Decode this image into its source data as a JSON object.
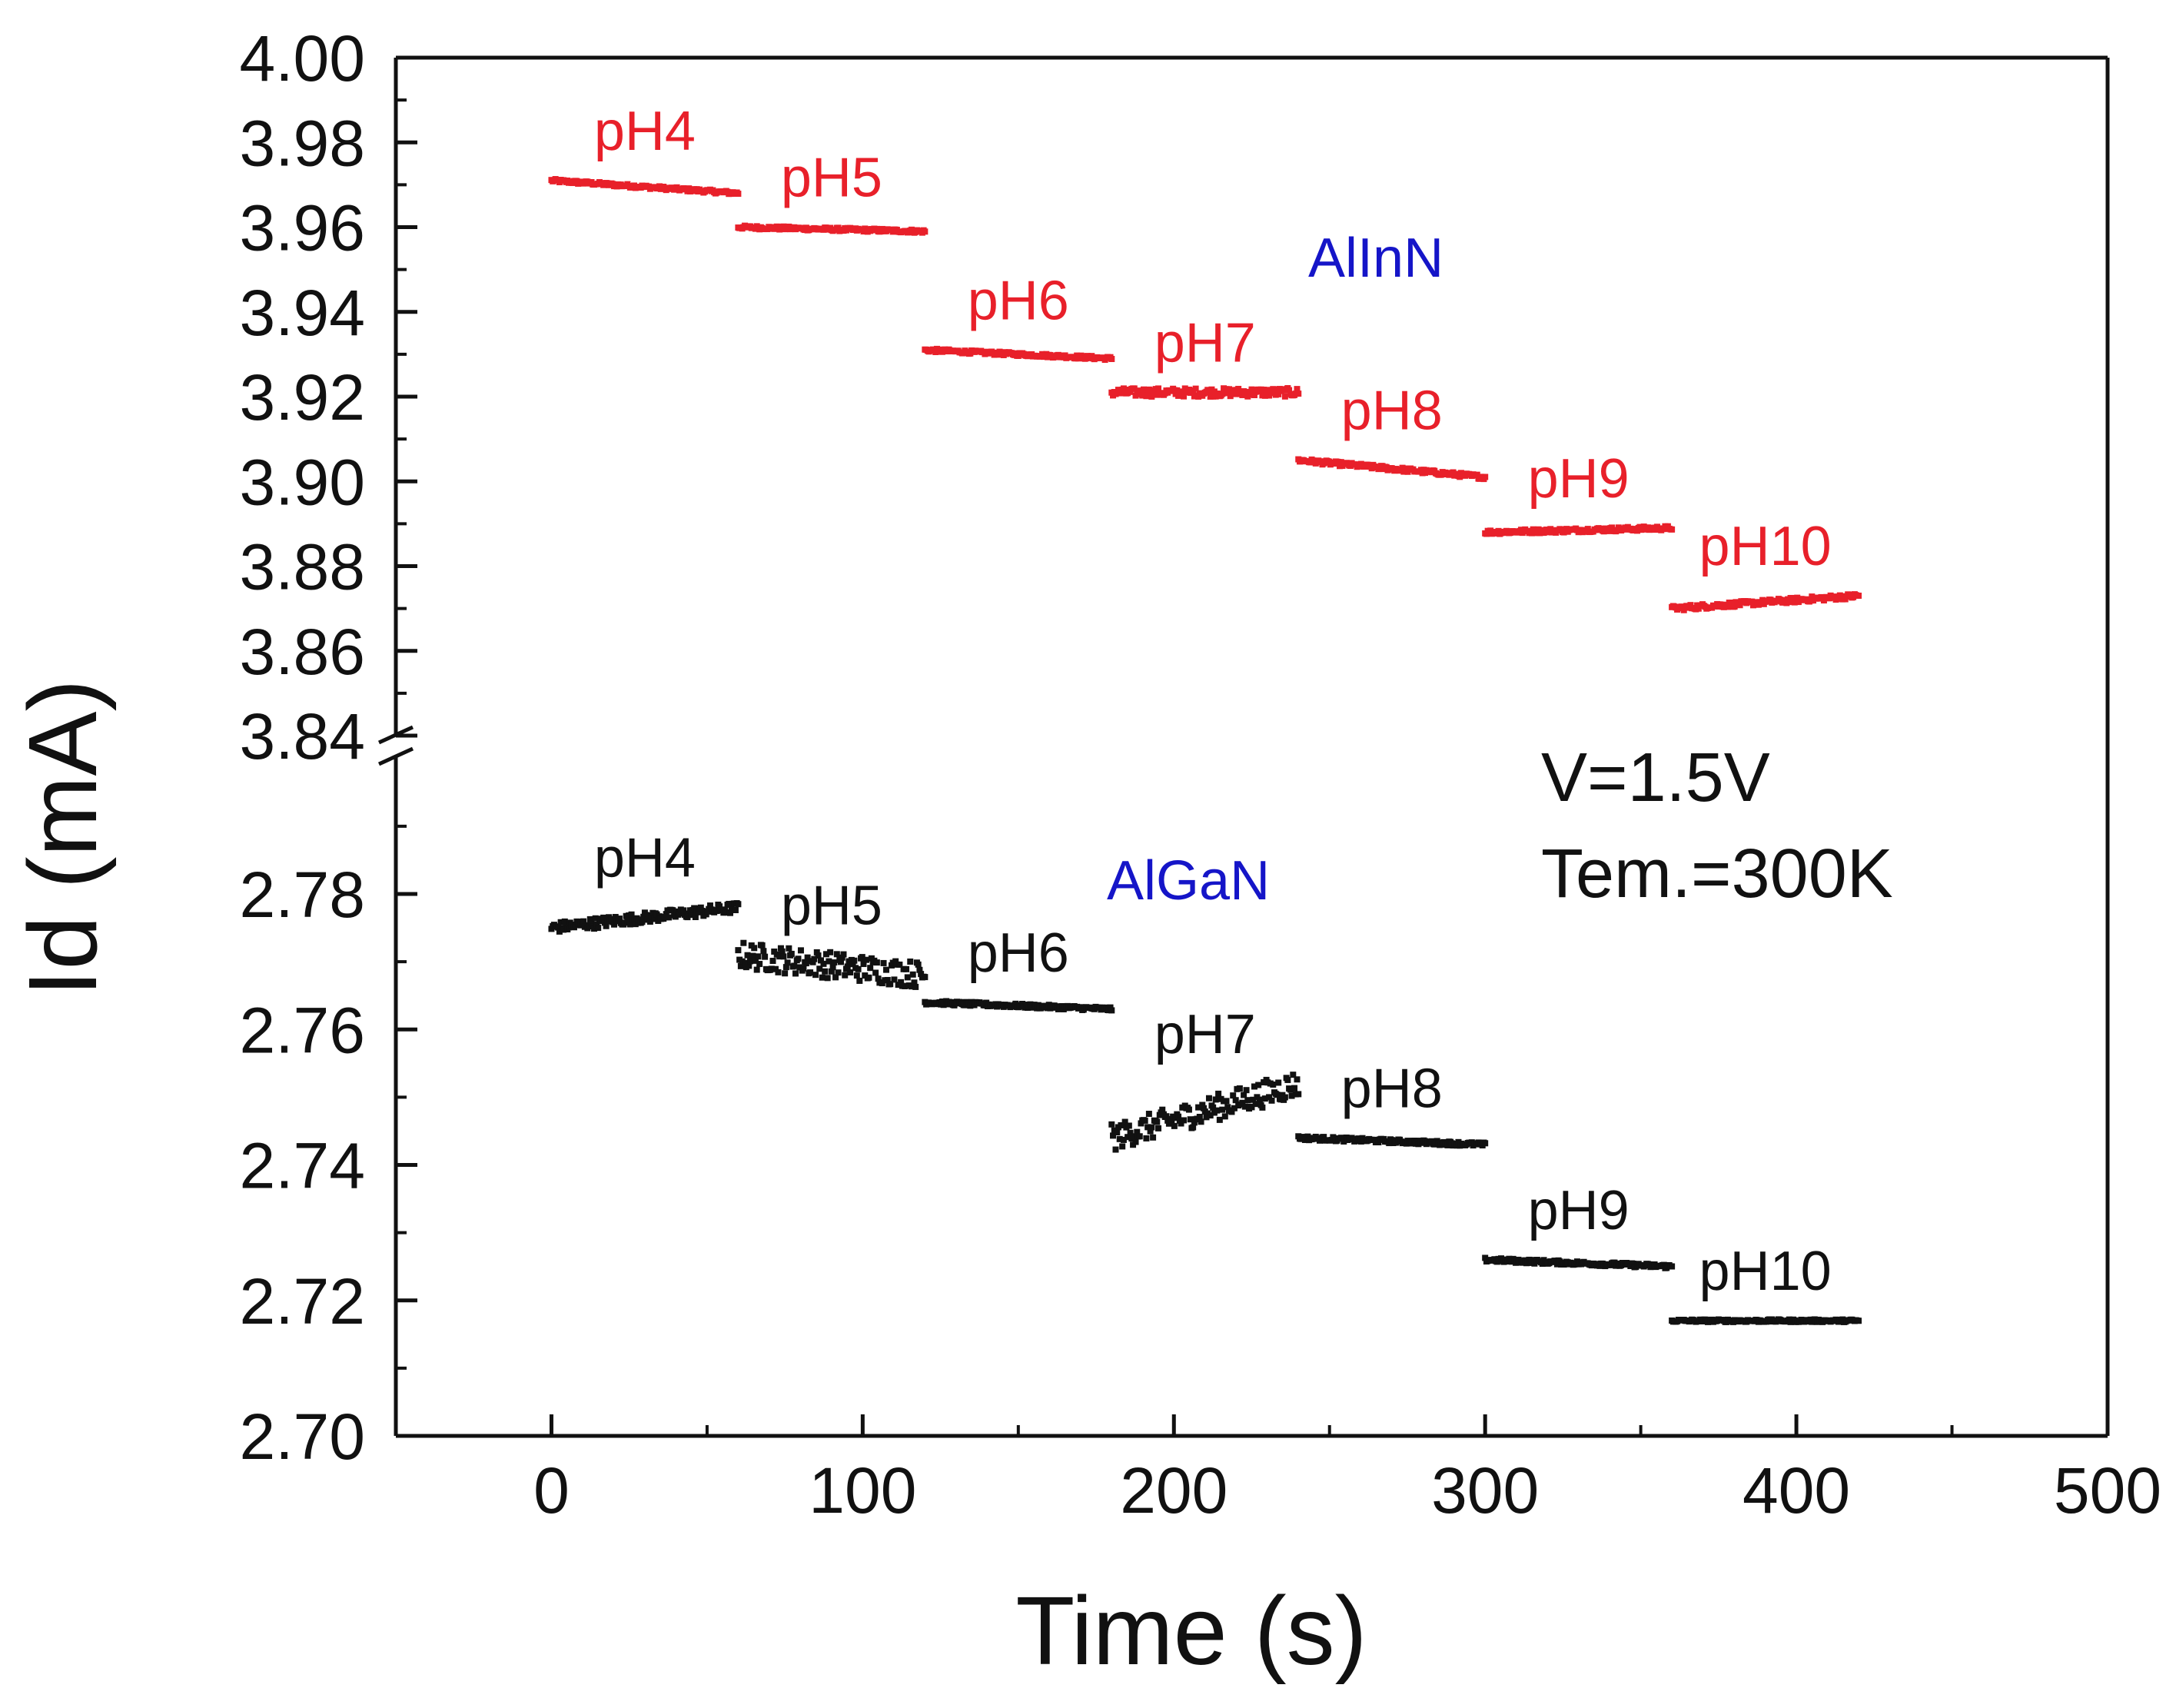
{
  "chart_data": {
    "type": "scatter",
    "title": "",
    "xlabel": "Time (s)",
    "ylabel": "Id (mA)",
    "xlim": [
      -50,
      500
    ],
    "x_ticks": [
      0,
      100,
      200,
      300,
      400,
      500
    ],
    "x_tick_labels": [
      "0",
      "100",
      "200",
      "300",
      "400",
      "500"
    ],
    "y_axis_broken": true,
    "upper_ylim": [
      3.84,
      4.0
    ],
    "upper_y_ticks": [
      3.84,
      3.86,
      3.88,
      3.9,
      3.92,
      3.94,
      3.96,
      3.98,
      4.0
    ],
    "upper_y_tick_labels": [
      "3.84",
      "3.86",
      "3.88",
      "3.90",
      "3.92",
      "3.94",
      "3.96",
      "3.98",
      "4.00"
    ],
    "lower_ylim": [
      2.7,
      2.8
    ],
    "lower_y_ticks": [
      2.7,
      2.72,
      2.74,
      2.76,
      2.78
    ],
    "lower_y_tick_labels": [
      "2.70",
      "2.72",
      "2.74",
      "2.76",
      "2.78"
    ],
    "annotations": [
      "V=1.5V",
      "Tem.=300K"
    ],
    "series": [
      {
        "name": "AlInN",
        "color": "#e8202a",
        "name_color": "#1515c8",
        "panel": "upper",
        "segments": [
          {
            "label": "pH4",
            "x": [
              0,
              60
            ],
            "y": [
              3.971,
              3.968
            ],
            "noise": 0.0004
          },
          {
            "label": "pH5",
            "x": [
              60,
              120
            ],
            "y": [
              3.96,
              3.959
            ],
            "noise": 0.0004
          },
          {
            "label": "pH6",
            "x": [
              120,
              180
            ],
            "y": [
              3.931,
              3.929
            ],
            "noise": 0.0004
          },
          {
            "label": "pH7",
            "x": [
              180,
              240
            ],
            "y": [
              3.921,
              3.921
            ],
            "noise": 0.001
          },
          {
            "label": "pH8",
            "x": [
              240,
              300
            ],
            "y": [
              3.905,
              3.901
            ],
            "noise": 0.0005
          },
          {
            "label": "pH9",
            "x": [
              300,
              360
            ],
            "y": [
              3.888,
              3.889
            ],
            "noise": 0.0005
          },
          {
            "label": "pH10",
            "x": [
              360,
              420
            ],
            "y": [
              3.87,
              3.873
            ],
            "noise": 0.0006
          }
        ]
      },
      {
        "name": "AlGaN",
        "color": "#111111",
        "name_color": "#1515c8",
        "panel": "lower",
        "segments": [
          {
            "label": "pH4",
            "x": [
              0,
              60
            ],
            "y": [
              2.775,
              2.778
            ],
            "noise": 0.0008
          },
          {
            "label": "pH5",
            "x": [
              60,
              120
            ],
            "y": [
              2.771,
              2.768
            ],
            "noise": 0.002
          },
          {
            "label": "pH6",
            "x": [
              120,
              180
            ],
            "y": [
              2.764,
              2.763
            ],
            "noise": 0.0003
          },
          {
            "label": "pH7",
            "x": [
              180,
              240
            ],
            "y": [
              2.744,
              2.752
            ],
            "noise": 0.002
          },
          {
            "label": "pH8",
            "x": [
              240,
              300
            ],
            "y": [
              2.744,
              2.743
            ],
            "noise": 0.0003
          },
          {
            "label": "pH9",
            "x": [
              300,
              360
            ],
            "y": [
              2.726,
              2.725
            ],
            "noise": 0.0003
          },
          {
            "label": "pH10",
            "x": [
              360,
              420
            ],
            "y": [
              2.717,
              2.717
            ],
            "noise": 0.0002
          }
        ]
      }
    ]
  }
}
